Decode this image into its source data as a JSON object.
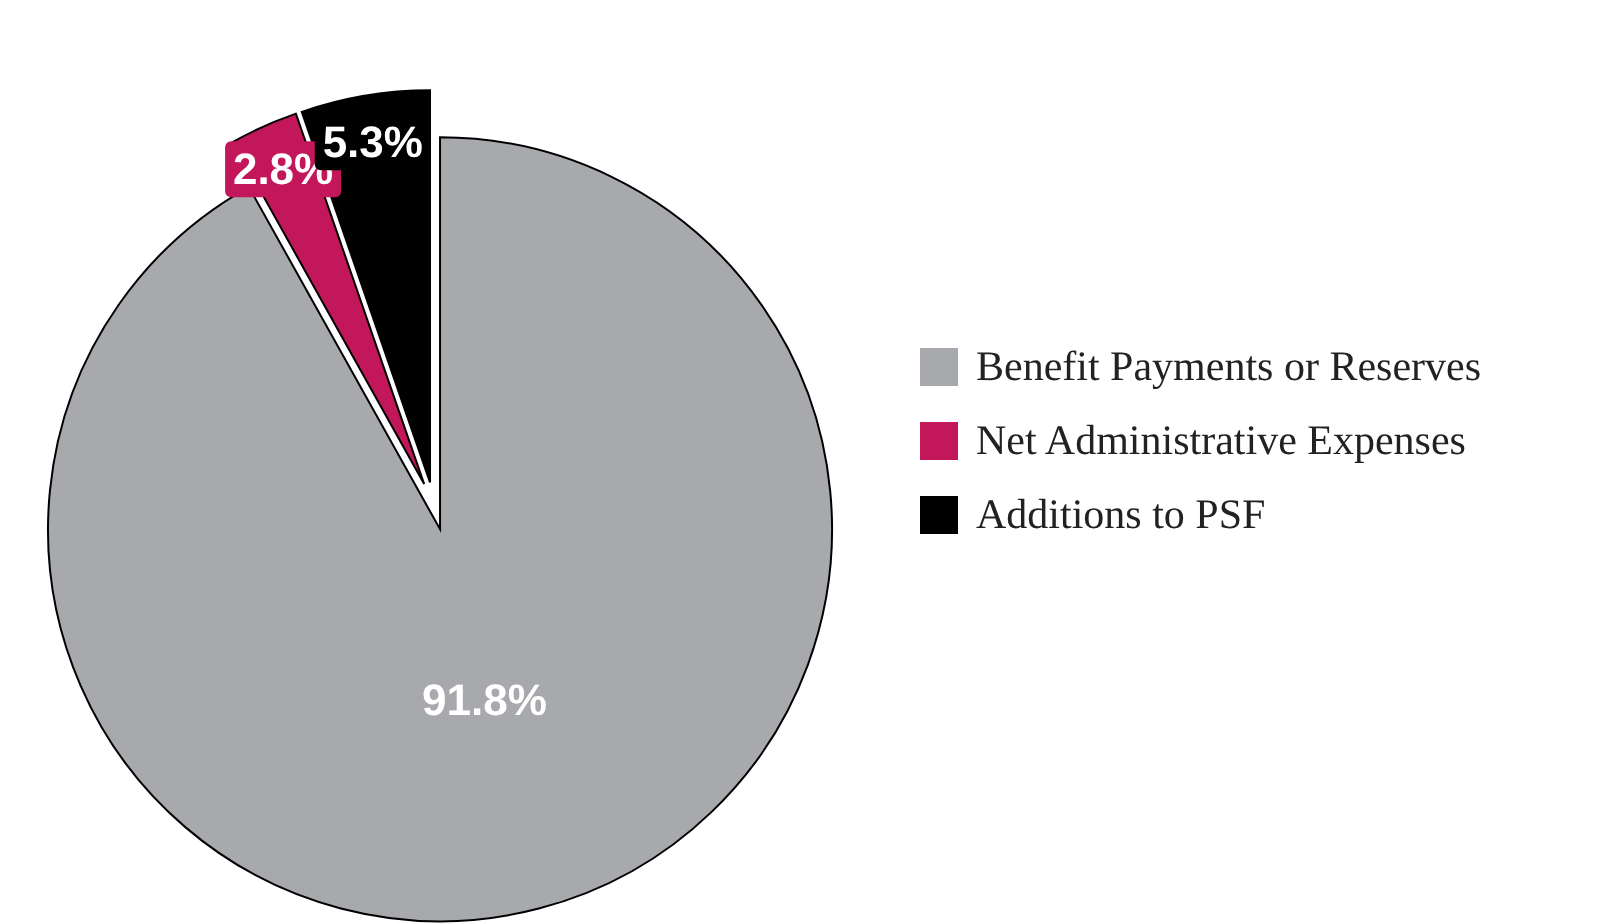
{
  "chart_data": {
    "type": "pie",
    "categories": [
      "Benefit Payments or Reserves",
      "Net Administrative Expenses",
      "Additions to PSF"
    ],
    "values": [
      91.8,
      2.8,
      5.3
    ],
    "colors": [
      "#a7a9ac",
      "#c2185b",
      "#000000"
    ],
    "value_labels": [
      "91.8%",
      "2.8%",
      "5.3%"
    ],
    "legend": "right"
  }
}
